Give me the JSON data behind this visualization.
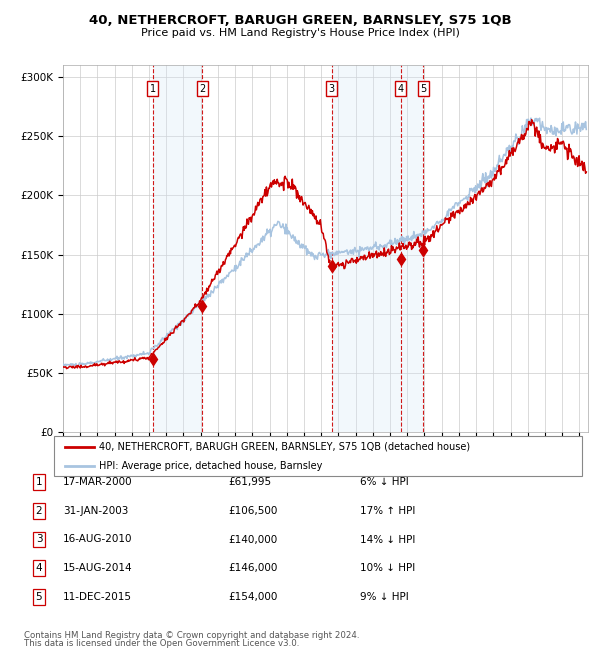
{
  "title1": "40, NETHERCROFT, BARUGH GREEN, BARNSLEY, S75 1QB",
  "title2": "Price paid vs. HM Land Registry's House Price Index (HPI)",
  "legend_line1": "40, NETHERCROFT, BARUGH GREEN, BARNSLEY, S75 1QB (detached house)",
  "legend_line2": "HPI: Average price, detached house, Barnsley",
  "footer1": "Contains HM Land Registry data © Crown copyright and database right 2024.",
  "footer2": "This data is licensed under the Open Government Licence v3.0.",
  "transactions": [
    {
      "num": 1,
      "date": "17-MAR-2000",
      "date_val": 2000.21,
      "price": 61995,
      "hpi_diff": "6% ↓ HPI"
    },
    {
      "num": 2,
      "date": "31-JAN-2003",
      "date_val": 2003.08,
      "price": 106500,
      "hpi_diff": "17% ↑ HPI"
    },
    {
      "num": 3,
      "date": "16-AUG-2010",
      "date_val": 2010.62,
      "price": 140000,
      "hpi_diff": "14% ↓ HPI"
    },
    {
      "num": 4,
      "date": "15-AUG-2014",
      "date_val": 2014.62,
      "price": 146000,
      "hpi_diff": "10% ↓ HPI"
    },
    {
      "num": 5,
      "date": "11-DEC-2015",
      "date_val": 2015.94,
      "price": 154000,
      "hpi_diff": "9% ↓ HPI"
    }
  ],
  "hpi_color": "#a8c4e0",
  "price_color": "#cc0000",
  "marker_color": "#cc0000",
  "dashed_color": "#cc0000",
  "shade_color": "#d6e8f7",
  "ylim": [
    0,
    310000
  ],
  "xlim_start": 1995.0,
  "xlim_end": 2025.5,
  "yticks": [
    0,
    50000,
    100000,
    150000,
    200000,
    250000,
    300000
  ],
  "ytick_labels": [
    "£0",
    "£50K",
    "£100K",
    "£150K",
    "£200K",
    "£250K",
    "£300K"
  ],
  "xticks": [
    1995,
    1996,
    1997,
    1998,
    1999,
    2000,
    2001,
    2002,
    2003,
    2004,
    2005,
    2006,
    2007,
    2008,
    2009,
    2010,
    2011,
    2012,
    2013,
    2014,
    2015,
    2016,
    2017,
    2018,
    2019,
    2020,
    2021,
    2022,
    2023,
    2024,
    2025
  ]
}
